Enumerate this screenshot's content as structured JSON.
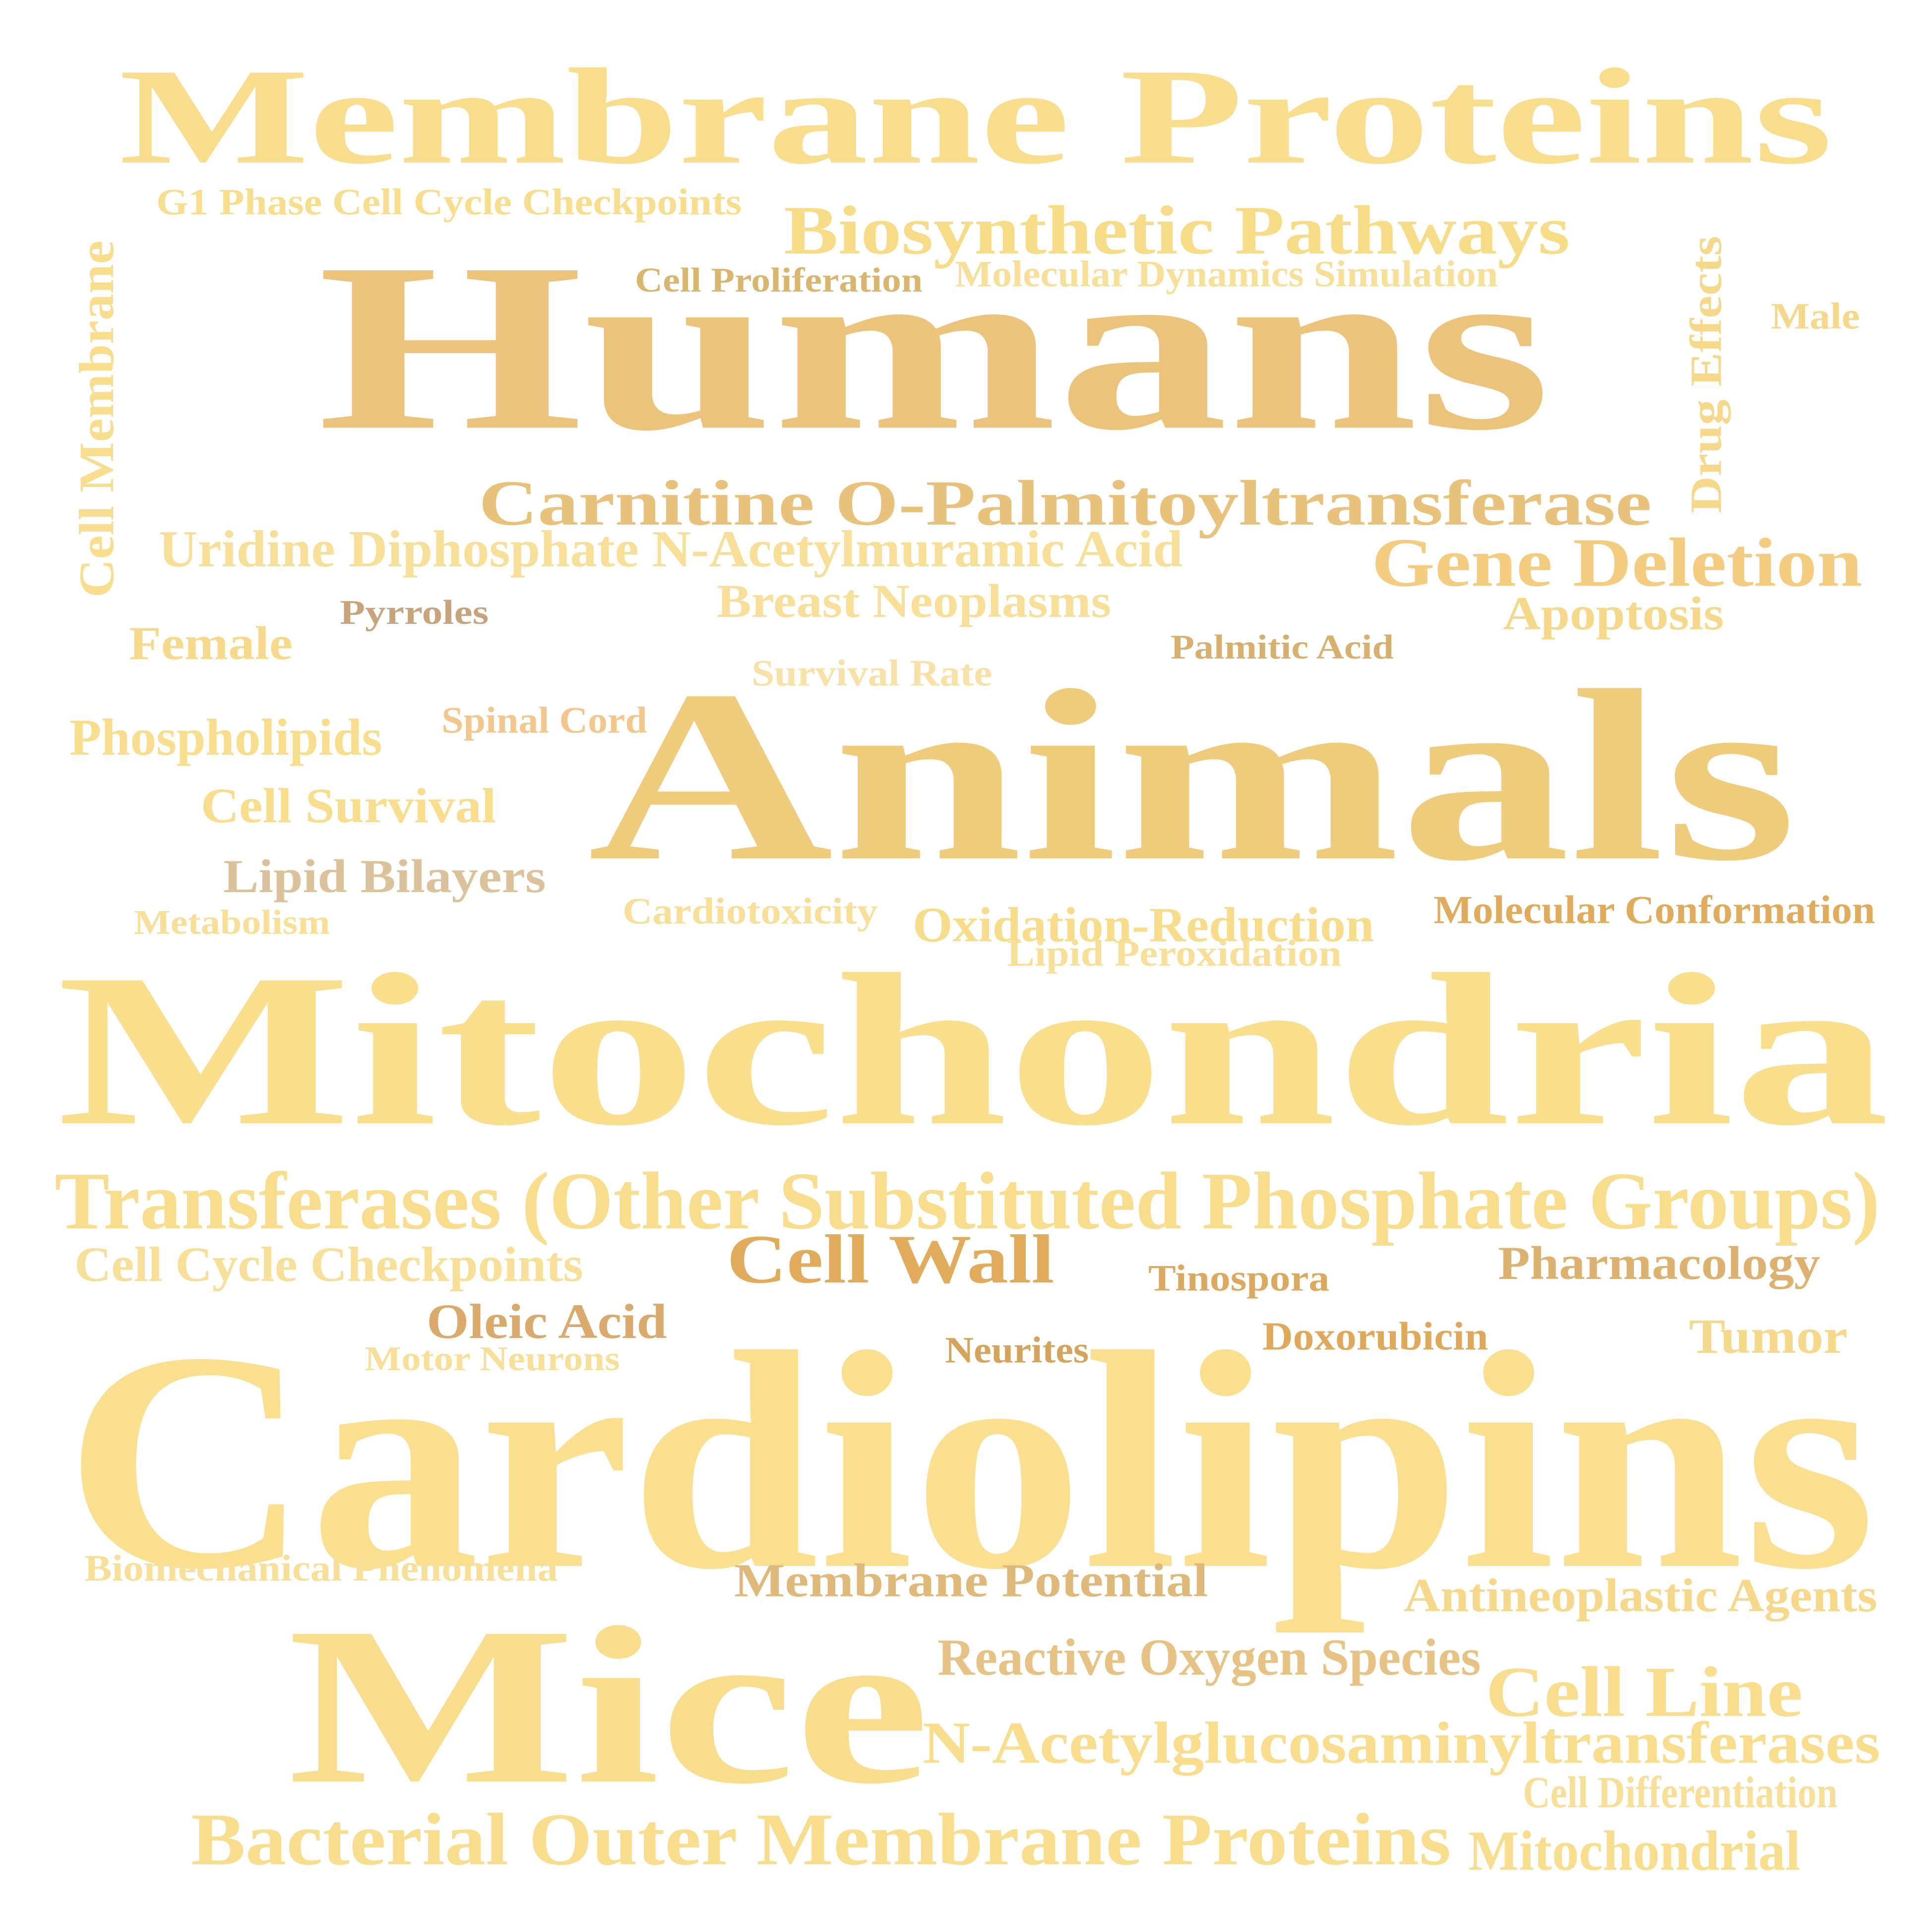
{
  "words": [
    {
      "text": "Membrane Proteins",
      "color": "#f8dd8c"
    },
    {
      "text": "G1 Phase Cell Cycle Checkpoints",
      "color": "#f8dd8c"
    },
    {
      "text": "Biosynthetic Pathways",
      "color": "#f7dc88"
    },
    {
      "text": "Cell Proliferation",
      "color": "#d9b56d"
    },
    {
      "text": "Molecular Dynamics Simulation",
      "color": "#f8df98"
    },
    {
      "text": "Humans",
      "color": "#ebc37b"
    },
    {
      "text": "Cell Membrane",
      "color": "#f8dd8c"
    },
    {
      "text": "Drug Effects",
      "color": "#f6d88a"
    },
    {
      "text": "Male",
      "color": "#f6d88a"
    },
    {
      "text": "Carnitine O-Palmitoyltransferase",
      "color": "#e8c27a"
    },
    {
      "text": "Uridine Diphosphate N-Acetylmuramic Acid",
      "color": "#f8df98"
    },
    {
      "text": "Gene Deletion",
      "color": "#f4cc7f"
    },
    {
      "text": "Breast Neoplasms",
      "color": "#f8df98"
    },
    {
      "text": "Pyrroles",
      "color": "#c9a47a"
    },
    {
      "text": "Apoptosis",
      "color": "#f6d88a"
    },
    {
      "text": "Female",
      "color": "#f7d98c"
    },
    {
      "text": "Palmitic Acid",
      "color": "#d6b06c"
    },
    {
      "text": "Survival Rate",
      "color": "#f8e1a6"
    },
    {
      "text": "Spinal Cord",
      "color": "#f3c68c"
    },
    {
      "text": "Phospholipids",
      "color": "#f8dd8c"
    },
    {
      "text": "Animals",
      "color": "#efcc7c"
    },
    {
      "text": "Cell Survival",
      "color": "#f8dd8c"
    },
    {
      "text": "Lipid Bilayers",
      "color": "#dcc29a"
    },
    {
      "text": "Metabolism",
      "color": "#f8df98"
    },
    {
      "text": "Cardiotoxicity",
      "color": "#f8df98"
    },
    {
      "text": "Oxidation-Reduction",
      "color": "#f7dc8a"
    },
    {
      "text": "Molecular Conformation",
      "color": "#e0ac5c"
    },
    {
      "text": "Lipid Peroxidation",
      "color": "#f8df98"
    },
    {
      "text": "Mitochondria",
      "color": "#f9df8c"
    },
    {
      "text": "Transferases (Other Substituted Phosphate Groups)",
      "color": "#f8dd8c"
    },
    {
      "text": "Cell Cycle Checkpoints",
      "color": "#f8df98"
    },
    {
      "text": "Cell Wall",
      "color": "#e0ac5c"
    },
    {
      "text": "Tinospora",
      "color": "#dba960"
    },
    {
      "text": "Pharmacology",
      "color": "#ddb170"
    },
    {
      "text": "Oleic Acid",
      "color": "#d9aa6c"
    },
    {
      "text": "Neurites",
      "color": "#d6a35a"
    },
    {
      "text": "Doxorubicin",
      "color": "#e0a85a"
    },
    {
      "text": "Tumor",
      "color": "#f6d88a"
    },
    {
      "text": "Motor Neurons",
      "color": "#f8df98"
    },
    {
      "text": "Cardiolipins",
      "color": "#fae08e"
    },
    {
      "text": "Biomechanical Phenomena",
      "color": "#f8df98"
    },
    {
      "text": "Membrane Potential",
      "color": "#dfb97a"
    },
    {
      "text": "Antineoplastic Agents",
      "color": "#f6d88a"
    },
    {
      "text": "Mice",
      "color": "#f8dd8c"
    },
    {
      "text": "Reactive Oxygen Species",
      "color": "#e6c385"
    },
    {
      "text": "Cell Line",
      "color": "#f8dd8c"
    },
    {
      "text": "N-Acetylglucosaminyltransferases",
      "color": "#f8dd8c"
    },
    {
      "text": "Cell Differentiation",
      "color": "#f8df98"
    },
    {
      "text": "Bacterial Outer Membrane Proteins",
      "color": "#f8dd8c"
    },
    {
      "text": "Mitochondrial",
      "color": "#f8dd8c"
    }
  ]
}
